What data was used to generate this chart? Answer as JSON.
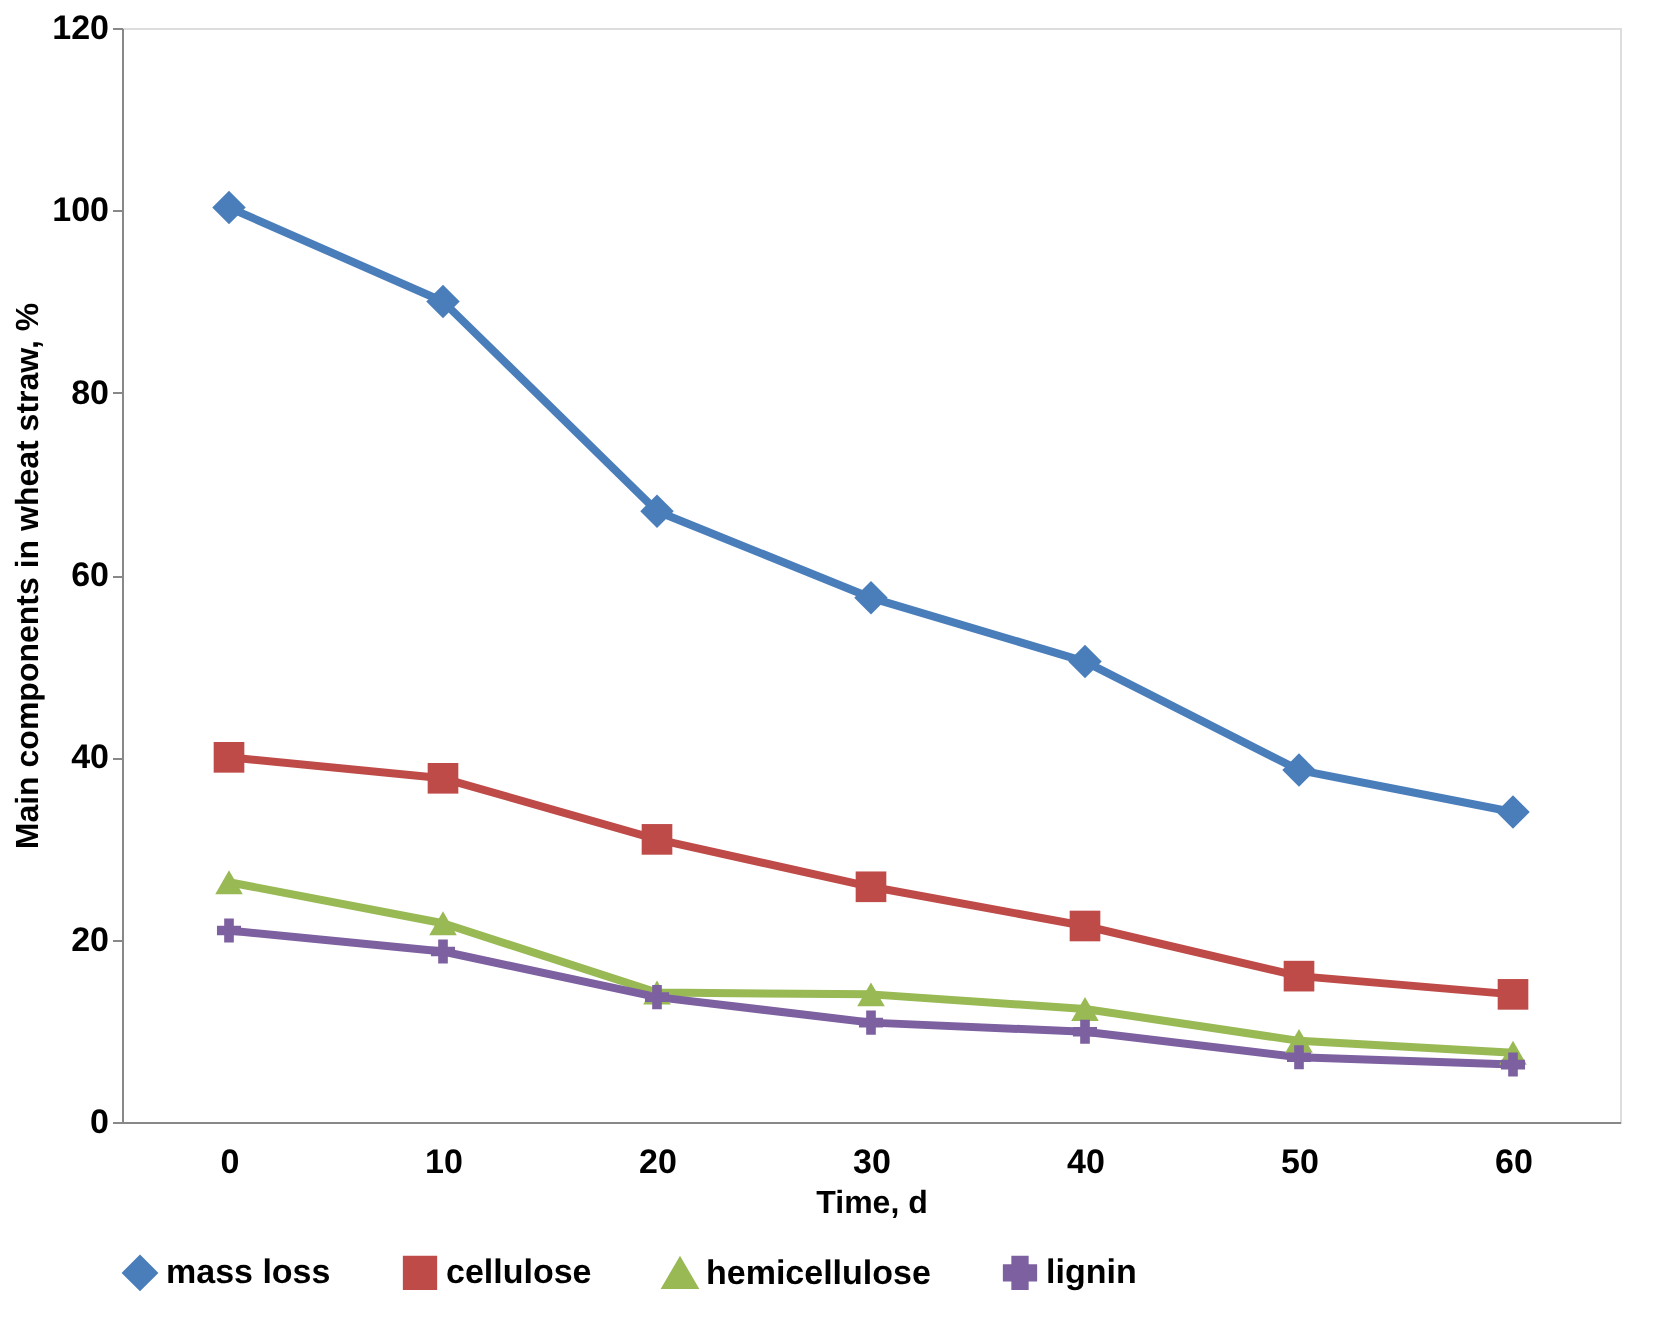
{
  "chart_data": {
    "type": "line",
    "xlabel": "Time, d",
    "ylabel": "Main components in wheat straw, %",
    "categories": [
      "0",
      "10",
      "20",
      "30",
      "40",
      "50",
      "60"
    ],
    "series": [
      {
        "name": "mass loss",
        "color": "#4a7ebb",
        "marker": "diamond",
        "values": [
          100.3,
          90,
          67,
          57.5,
          50.5,
          38.6,
          34
        ]
      },
      {
        "name": "cellulose",
        "color": "#be4b48",
        "marker": "square",
        "values": [
          40,
          37.7,
          31,
          25.8,
          21.5,
          16,
          14
        ]
      },
      {
        "name": "hemicellulose",
        "color": "#98b954",
        "marker": "triangle",
        "values": [
          26.3,
          21.8,
          14.2,
          14,
          12.4,
          8.9,
          7.6
        ]
      },
      {
        "name": "lignin",
        "color": "#7d60a0",
        "marker": "cross",
        "values": [
          21,
          18.7,
          13.7,
          10.9,
          9.9,
          7.1,
          6.3
        ]
      }
    ],
    "ylim": [
      0,
      120
    ],
    "yticks": [
      0,
      20,
      40,
      60,
      80,
      100,
      120
    ],
    "grid": false,
    "legend": "bottom",
    "line_style": "solid"
  }
}
